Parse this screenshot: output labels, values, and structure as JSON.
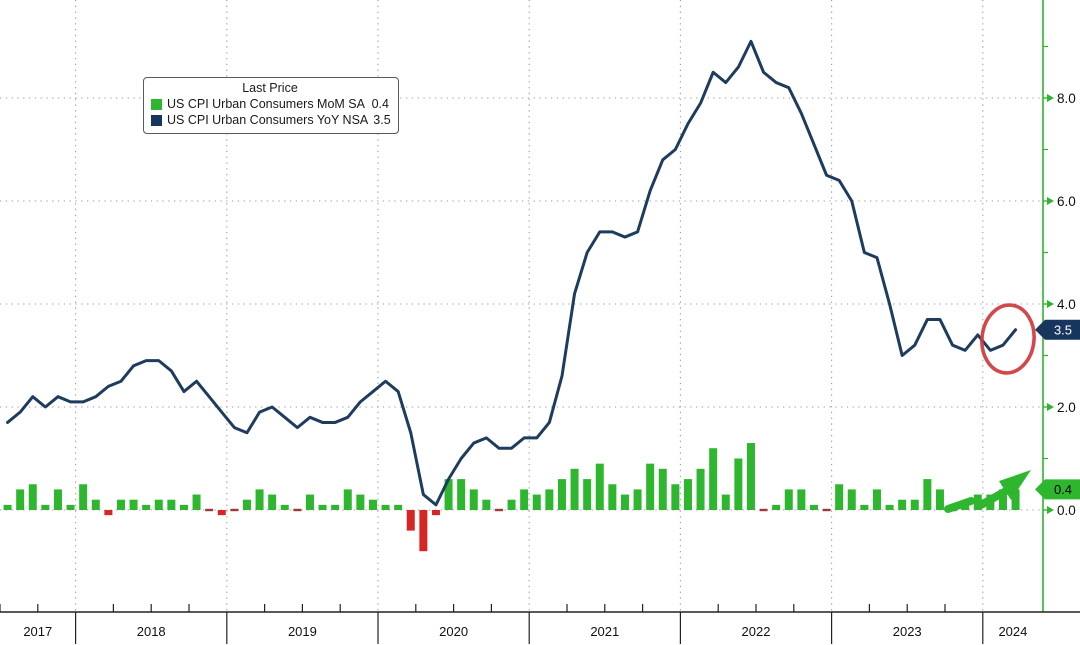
{
  "legend": {
    "title": "Last Price",
    "series": [
      {
        "label": "US CPI Urban Consumers MoM SA",
        "value": "0.4",
        "color": "#2fb62f"
      },
      {
        "label": "US CPI Urban Consumers YoY NSA",
        "value": "3.5",
        "color": "#17365d"
      }
    ]
  },
  "y_axis": {
    "side": "right",
    "axis_color": "#2fb62f",
    "label_color": "#101010",
    "major_ticks": [
      {
        "value": 8,
        "label": "8.0"
      },
      {
        "value": 6,
        "label": "6.0"
      },
      {
        "value": 4,
        "label": "4.0"
      },
      {
        "value": 2,
        "label": "2.0"
      },
      {
        "value": 0,
        "label": "0.0"
      }
    ],
    "minor_ticks": [
      9,
      7,
      5,
      3,
      1
    ]
  },
  "x_axis": {
    "year_labels": [
      "2017",
      "2018",
      "2019",
      "2020",
      "2021",
      "2022",
      "2023",
      "2024"
    ]
  },
  "last_price_badges": [
    {
      "text": "3.5",
      "value": 3.5,
      "bg": "#17365d",
      "fg": "#ffffff",
      "series": "yoy"
    },
    {
      "text": "0.4",
      "value": 0.4,
      "bg": "#2fb62f",
      "fg": "#000000",
      "series": "mom"
    }
  ],
  "annotations": [
    {
      "type": "ellipse",
      "color": "#cd3a3c",
      "target": "line-end-3.5"
    },
    {
      "type": "arrow-up-right",
      "color": "#2fb62f",
      "target": "recent-mom-bars"
    }
  ],
  "chart_data": {
    "type": "combo",
    "frequency": "monthly",
    "x_start": "2017-07",
    "x_end": "2024-03",
    "ylim": [
      -1.6,
      9.9
    ],
    "y_ticks": [
      0,
      2,
      4,
      6,
      8
    ],
    "grid": "dotted",
    "legend_position": "top-left",
    "series": [
      {
        "name": "US CPI Urban Consumers MoM SA",
        "type": "bar",
        "color_positive": "#2fb62f",
        "color_negative": "#d62525",
        "color_zero_dash": "#9e3939",
        "last": 0.4,
        "values": [
          0.1,
          0.4,
          0.5,
          0.1,
          0.4,
          0.1,
          0.5,
          0.2,
          -0.1,
          0.2,
          0.2,
          0.1,
          0.2,
          0.2,
          0.1,
          0.3,
          0.0,
          -0.1,
          0.0,
          0.2,
          0.4,
          0.3,
          0.1,
          0.0,
          0.3,
          0.1,
          0.1,
          0.4,
          0.3,
          0.2,
          0.1,
          0.1,
          -0.4,
          -0.8,
          -0.1,
          0.6,
          0.6,
          0.4,
          0.2,
          0.0,
          0.2,
          0.4,
          0.3,
          0.4,
          0.6,
          0.8,
          0.6,
          0.9,
          0.5,
          0.3,
          0.4,
          0.9,
          0.8,
          0.5,
          0.6,
          0.8,
          1.2,
          0.3,
          1.0,
          1.3,
          0.0,
          0.1,
          0.4,
          0.4,
          0.1,
          0.0,
          0.5,
          0.4,
          0.1,
          0.4,
          0.1,
          0.2,
          0.2,
          0.6,
          0.4,
          0.0,
          0.1,
          0.3,
          0.3,
          0.4,
          0.4
        ]
      },
      {
        "name": "US CPI Urban Consumers YoY NSA",
        "type": "line",
        "color": "#1d3c5e",
        "last": 3.5,
        "values": [
          1.7,
          1.9,
          2.2,
          2.0,
          2.2,
          2.1,
          2.1,
          2.2,
          2.4,
          2.5,
          2.8,
          2.9,
          2.9,
          2.7,
          2.3,
          2.5,
          2.2,
          1.9,
          1.6,
          1.5,
          1.9,
          2.0,
          1.8,
          1.6,
          1.8,
          1.7,
          1.7,
          1.8,
          2.1,
          2.3,
          2.5,
          2.3,
          1.5,
          0.3,
          0.1,
          0.6,
          1.0,
          1.3,
          1.4,
          1.2,
          1.2,
          1.4,
          1.4,
          1.7,
          2.6,
          4.2,
          5.0,
          5.4,
          5.4,
          5.3,
          5.4,
          6.2,
          6.8,
          7.0,
          7.5,
          7.9,
          8.5,
          8.3,
          8.6,
          9.1,
          8.5,
          8.3,
          8.2,
          7.7,
          7.1,
          6.5,
          6.4,
          6.0,
          5.0,
          4.9,
          4.0,
          3.0,
          3.2,
          3.7,
          3.7,
          3.2,
          3.1,
          3.4,
          3.1,
          3.2,
          3.5
        ]
      }
    ]
  }
}
